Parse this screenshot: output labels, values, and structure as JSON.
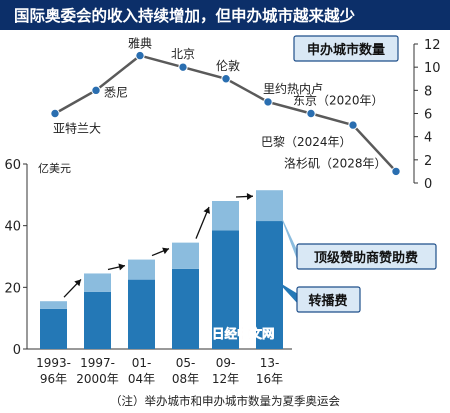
{
  "title": "国际奥委会的收入持续增加，但申办城市越来越少",
  "watermark": "日经中文网",
  "note": "（注）举办城市和申办城市数量为夏季奥运会",
  "colors": {
    "title_bar": "#0c2f69",
    "broadcast": "#2478b6",
    "sponsor": "#8bbcde",
    "line": "#5a5a5a",
    "marker": "#2a6eb0",
    "label_box_bg": "#d9e8f5",
    "label_box_border": "#1f4f8a",
    "axis_text": "#222222",
    "watermark_red": "#d91e18",
    "watermark_blue": "#1a55a6"
  },
  "chart_data": [
    {
      "type": "line",
      "title": "",
      "legend_label": "申办城市数量",
      "yaxis_side": "right",
      "ylim": [
        0,
        12
      ],
      "yticks": [
        0,
        2,
        4,
        6,
        8,
        10,
        12
      ],
      "points": [
        {
          "label": "亚特兰大",
          "value": 6
        },
        {
          "label": "悉尼",
          "value": 8
        },
        {
          "label": "雅典",
          "value": 11
        },
        {
          "label": "北京",
          "value": 10
        },
        {
          "label": "伦敦",
          "value": 9
        },
        {
          "label": "里约热内卢",
          "value": 7
        },
        {
          "label": "东京（2020年）",
          "value": 6
        },
        {
          "label": "巴黎（2024年）",
          "value": 5
        },
        {
          "label": "洛杉矶（2028年）",
          "value": 1
        }
      ]
    },
    {
      "type": "bar",
      "stacked": true,
      "unit_label": "亿美元",
      "ylim": [
        0,
        60
      ],
      "yticks": [
        0,
        20,
        40,
        60
      ],
      "grid": false,
      "categories": [
        [
          "1993-",
          "96年"
        ],
        [
          "1997-",
          "2000年"
        ],
        [
          "01-",
          "04年"
        ],
        [
          "05-",
          "08年"
        ],
        [
          "09-",
          "12年"
        ],
        [
          "13-",
          "16年"
        ]
      ],
      "series": [
        {
          "name": "转播费",
          "values": [
            13,
            18.5,
            22.5,
            26,
            38.5,
            41.5
          ]
        },
        {
          "name": "顶级赞助商赞助费",
          "values": [
            2.5,
            6,
            6.5,
            8.5,
            9.5,
            10
          ]
        }
      ]
    }
  ]
}
